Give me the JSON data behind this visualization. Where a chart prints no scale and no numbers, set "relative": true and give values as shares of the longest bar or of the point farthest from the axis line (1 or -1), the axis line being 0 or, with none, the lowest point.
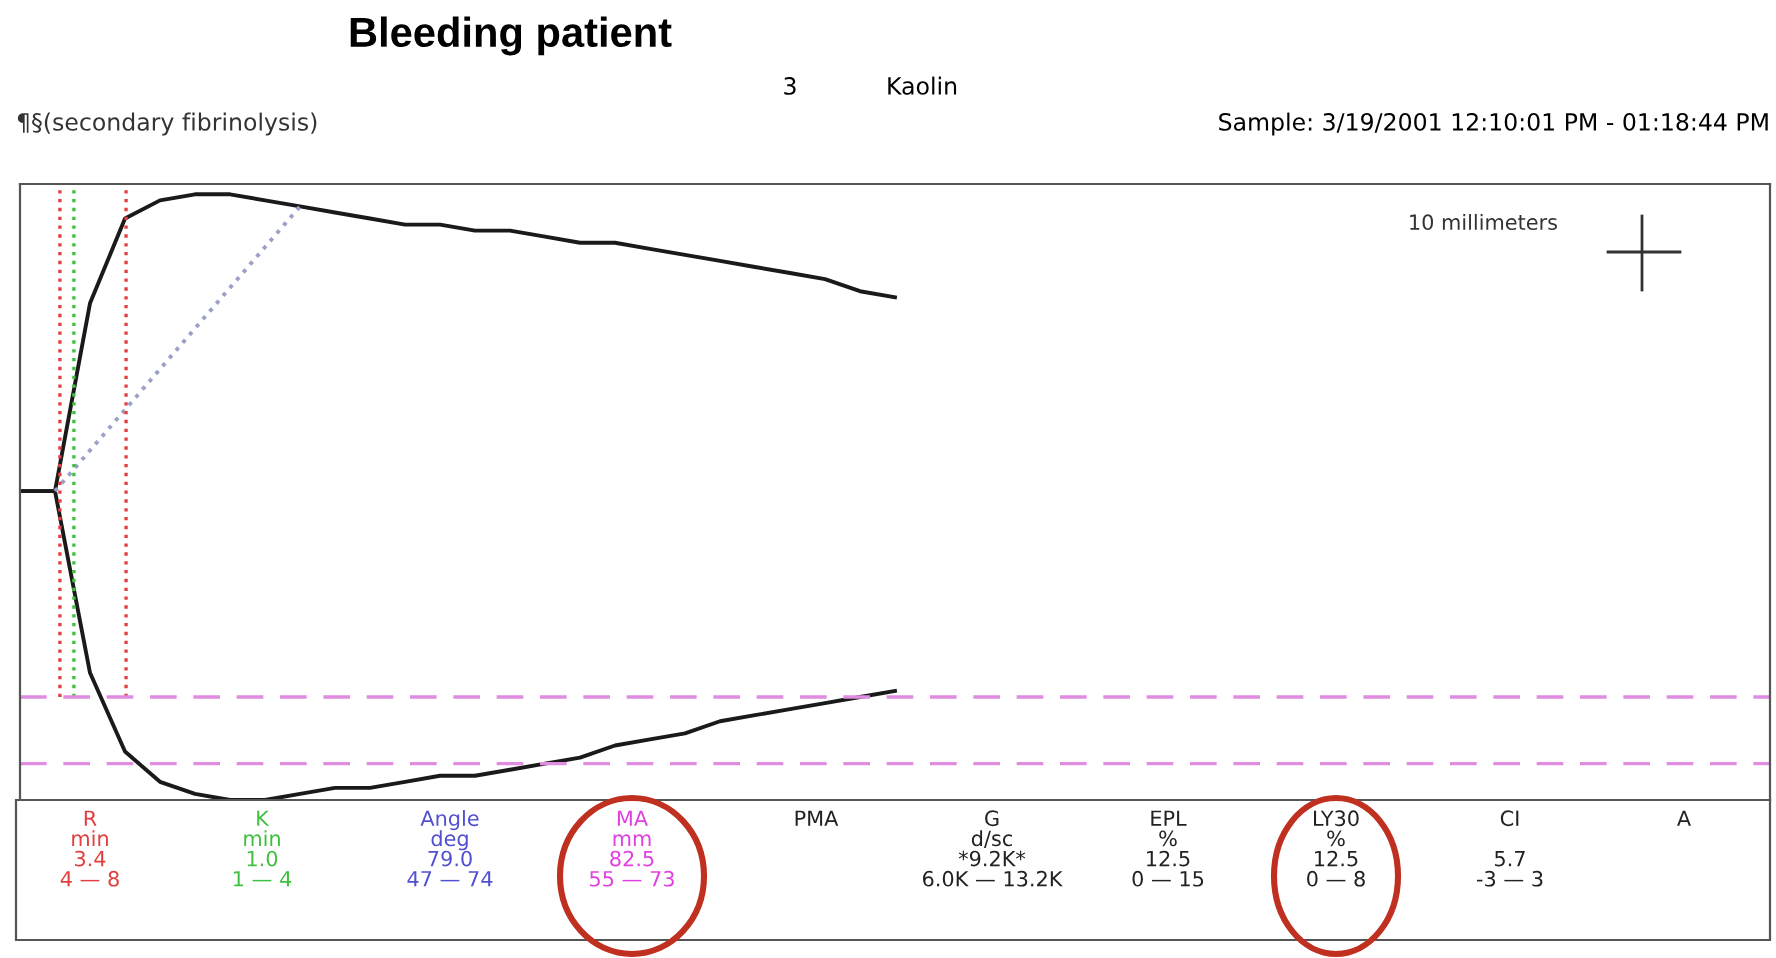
{
  "chart_data": {
    "type": "line",
    "relative": true,
    "title": "Bleeding patient",
    "subtitle": "¶§(secondary fibrinolysis)",
    "categories": [
      null,
      null,
      null,
      null,
      null,
      null,
      null,
      null,
      null,
      null,
      null,
      null,
      null,
      null,
      null,
      null,
      null,
      null,
      null,
      null,
      null,
      null,
      null,
      null,
      null,
      null,
      null,
      null,
      null,
      null,
      null,
      null,
      null,
      null,
      null,
      null,
      null,
      null,
      null,
      null,
      null,
      null,
      null,
      null,
      null,
      null,
      null,
      null,
      null,
      null
    ],
    "series": [
      {
        "color": "#1a1a1a",
        "line_style": "solid",
        "values": [
          0.51,
          0.51,
          0.82,
          0.96,
          0.99,
          1,
          1,
          0.99,
          0.98,
          0.97,
          0.96,
          0.95,
          0.95,
          0.94,
          0.94,
          0.93,
          0.92,
          0.92,
          0.91,
          0.9,
          0.89,
          0.88,
          0.87,
          0.86,
          0.84,
          0.83,
          null,
          null,
          null,
          null,
          null,
          null,
          null,
          null,
          null,
          null,
          null,
          null,
          null,
          null,
          null,
          null,
          null,
          null,
          null,
          null,
          null,
          null,
          null,
          null
        ]
      },
      {
        "color": "#1a1a1a",
        "line_style": "solid",
        "values": [
          0.51,
          0.51,
          0.21,
          0.08,
          0.03,
          0.01,
          0,
          0,
          0.01,
          0.02,
          0.02,
          0.03,
          0.04,
          0.04,
          0.05,
          0.06,
          0.07,
          0.09,
          0.1,
          0.11,
          0.13,
          0.14,
          0.15,
          0.16,
          0.17,
          0.18,
          null,
          null,
          null,
          null,
          null,
          null,
          null,
          null,
          null,
          null,
          null,
          null,
          null,
          null,
          null,
          null,
          null,
          null,
          null,
          null,
          null,
          null,
          null,
          null
        ]
      },
      {
        "color": "#9aa0c8",
        "line_style": "dotted",
        "values": [
          null,
          0.51,
          null,
          null,
          null,
          null,
          null,
          null,
          0.98,
          null,
          null,
          null,
          null,
          null,
          null,
          null,
          null,
          null,
          null,
          null,
          null,
          null,
          null,
          null,
          null,
          null,
          null,
          null,
          null,
          null,
          null,
          null,
          null,
          null,
          null,
          null,
          null,
          null,
          null,
          null,
          null,
          null,
          null,
          null,
          null,
          null,
          null,
          null,
          null,
          null
        ]
      }
    ],
    "ref_lines": [
      {
        "axis": "y",
        "value": 0.17,
        "color": "#e08ce0",
        "line_style": "dashed"
      },
      {
        "axis": "y",
        "value": 0.06,
        "color": "#e08ce0",
        "line_style": "dashed"
      }
    ],
    "annotations": [
      "3",
      "Kaolin",
      "Sample: 3/19/2001 12:10:01 PM - 01:18:44 PM",
      "10 millimeters",
      "R\nmin\n3.4\n4 — 8",
      "K\nmin\n1.0\n1 — 4",
      "Angle\ndeg\n79.0\n47 — 74",
      "MA\nmm\n82.5\n55 — 73",
      "PMA",
      "G\nd/sc\n*9.2K*\n6.0K — 13.2K",
      "EPL\n%\n12.5\n0 — 15",
      "LY30\n%\n12.5\n0 — 8",
      "CI\n\n5.7\n-3 — 3",
      "A"
    ],
    "legend": false
  }
}
